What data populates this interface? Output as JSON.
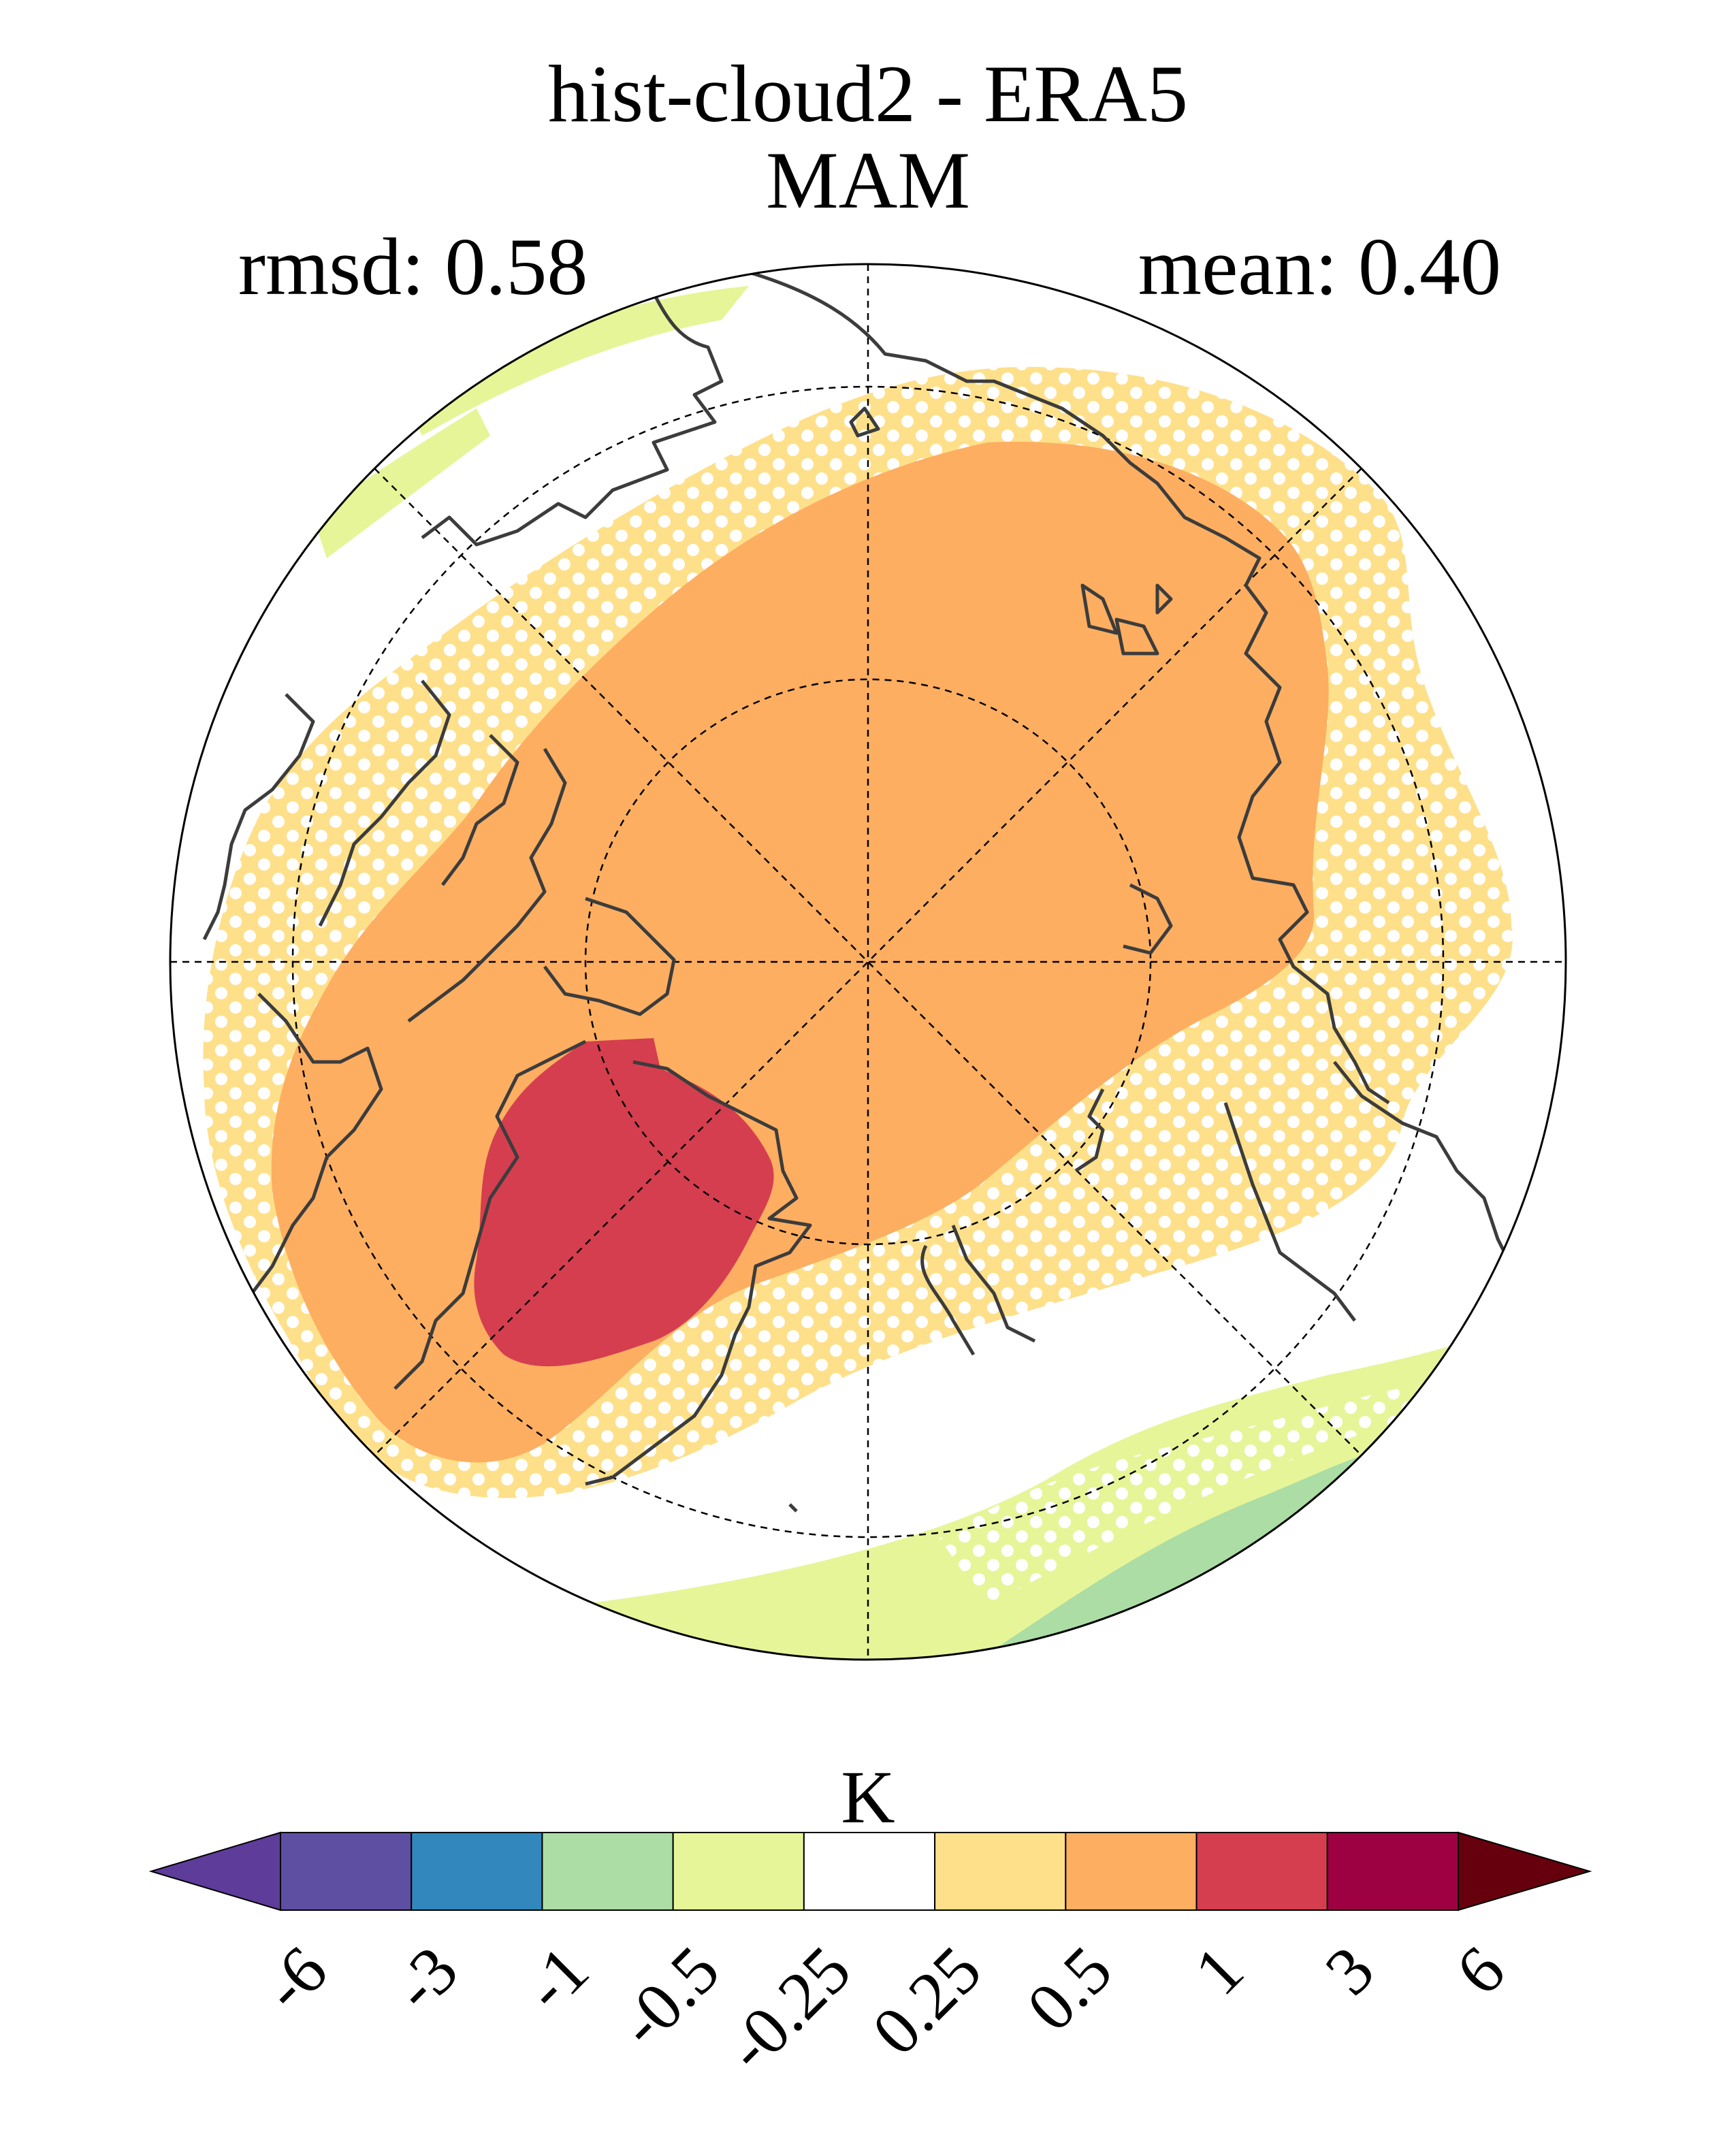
{
  "title": {
    "line1": "hist-cloud2 - ERA5",
    "line2": "MAM"
  },
  "stats": {
    "rmsd": "rmsd: 0.58",
    "mean": "mean: 0.40"
  },
  "map": {
    "projection": "north-polar-stereographic",
    "graticule": "dashed",
    "stippling": "white dots mark significant areas",
    "regions": [
      {
        "name": "arctic-core",
        "level": "0.5 to 1",
        "color": "#fdae61"
      },
      {
        "name": "greenland",
        "level": "1 to 3",
        "color": "#d53e4f"
      },
      {
        "name": "arctic-margin",
        "level": "0.25 to 0.5",
        "color": "#fee08b"
      },
      {
        "name": "north-pacific-band",
        "level": "-0.5 to -0.25",
        "color": "#e6f598"
      },
      {
        "name": "north-pacific-core",
        "level": "-1 to -0.5",
        "color": "#abdda4"
      }
    ]
  },
  "colorbar": {
    "units": "K",
    "ticks": [
      "-6",
      "-3",
      "-1",
      "-0.5",
      "-0.25",
      "0.25",
      "0.5",
      "1",
      "3",
      "6"
    ],
    "colors": [
      "#5e3c99",
      "#5e4fa2",
      "#3288bd",
      "#abdda4",
      "#e6f598",
      "#ffffff",
      "#fee08b",
      "#fdae61",
      "#d53e4f",
      "#9e0142",
      "#67000d"
    ],
    "extend": "both"
  }
}
